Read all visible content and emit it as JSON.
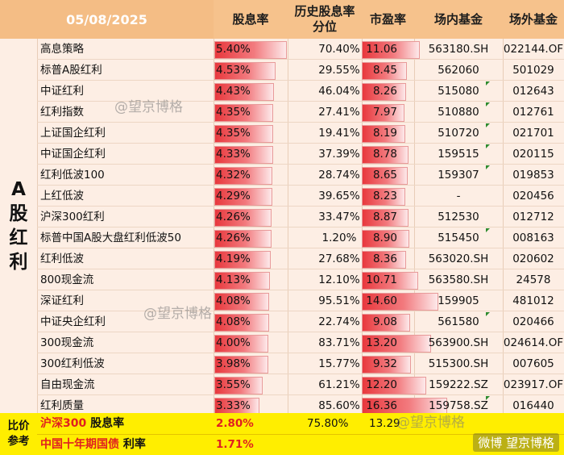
{
  "header": {
    "date": "05/08/2025",
    "col_yield": "股息率",
    "col_percentile": "历史股息率分位",
    "col_pe": "市盈率",
    "col_onmarket": "场内基金",
    "col_offmarket": "场外基金"
  },
  "side_label": [
    "A",
    "股",
    "红",
    "利"
  ],
  "rows": [
    {
      "name": "高息策略",
      "yield": "5.40%",
      "yield_value": 5.4,
      "percentile": "70.40%",
      "pe": "11.06",
      "pe_value": 11.06,
      "onmarket": "563180.SH",
      "offmarket": "022144.OF",
      "marker": false
    },
    {
      "name": "标普A股红利",
      "yield": "4.53%",
      "yield_value": 4.53,
      "percentile": "29.55%",
      "pe": "8.45",
      "pe_value": 8.45,
      "onmarket": "562060",
      "offmarket": "501029",
      "marker": false
    },
    {
      "name": "中证红利",
      "yield": "4.43%",
      "yield_value": 4.43,
      "percentile": "46.04%",
      "pe": "8.26",
      "pe_value": 8.26,
      "onmarket": "515080",
      "offmarket": "012643",
      "marker": true
    },
    {
      "name": "红利指数",
      "yield": "4.35%",
      "yield_value": 4.35,
      "percentile": "27.41%",
      "pe": "7.97",
      "pe_value": 7.97,
      "onmarket": "510880",
      "offmarket": "012761",
      "marker": true
    },
    {
      "name": "上证国企红利",
      "yield": "4.35%",
      "yield_value": 4.35,
      "percentile": "19.41%",
      "pe": "8.19",
      "pe_value": 8.19,
      "onmarket": "510720",
      "offmarket": "021701",
      "marker": true
    },
    {
      "name": "中证国企红利",
      "yield": "4.33%",
      "yield_value": 4.33,
      "percentile": "37.39%",
      "pe": "8.78",
      "pe_value": 8.78,
      "onmarket": "159515",
      "offmarket": "020115",
      "marker": true
    },
    {
      "name": "红利低波100",
      "yield": "4.32%",
      "yield_value": 4.32,
      "percentile": "28.74%",
      "pe": "8.65",
      "pe_value": 8.65,
      "onmarket": "159307",
      "offmarket": "019853",
      "marker": true
    },
    {
      "name": "上红低波",
      "yield": "4.29%",
      "yield_value": 4.29,
      "percentile": "39.65%",
      "pe": "8.23",
      "pe_value": 8.23,
      "onmarket": "-",
      "offmarket": "020456",
      "marker": false
    },
    {
      "name": "沪深300红利",
      "yield": "4.26%",
      "yield_value": 4.26,
      "percentile": "33.47%",
      "pe": "8.87",
      "pe_value": 8.87,
      "onmarket": "512530",
      "offmarket": "012712",
      "marker": false
    },
    {
      "name": "标普中国A股大盘红利低波50",
      "yield": "4.26%",
      "yield_value": 4.26,
      "percentile": "1.20%",
      "pe": "8.90",
      "pe_value": 8.9,
      "onmarket": "515450",
      "offmarket": "008163",
      "marker": true
    },
    {
      "name": "红利低波",
      "yield": "4.19%",
      "yield_value": 4.19,
      "percentile": "27.68%",
      "pe": "8.36",
      "pe_value": 8.36,
      "onmarket": "563020.SH",
      "offmarket": "020602",
      "marker": false
    },
    {
      "name": "800现金流",
      "yield": "4.13%",
      "yield_value": 4.13,
      "percentile": "12.10%",
      "pe": "10.71",
      "pe_value": 10.71,
      "onmarket": "563580.SH",
      "offmarket": "24578",
      "marker": false
    },
    {
      "name": "深证红利",
      "yield": "4.08%",
      "yield_value": 4.08,
      "percentile": "95.51%",
      "pe": "14.60",
      "pe_value": 14.6,
      "onmarket": "159905",
      "offmarket": "481012",
      "marker": false
    },
    {
      "name": "中证央企红利",
      "yield": "4.08%",
      "yield_value": 4.08,
      "percentile": "22.74%",
      "pe": "9.08",
      "pe_value": 9.08,
      "onmarket": "561580",
      "offmarket": "020466",
      "marker": true
    },
    {
      "name": "300现金流",
      "yield": "4.00%",
      "yield_value": 4.0,
      "percentile": "83.71%",
      "pe": "13.20",
      "pe_value": 13.2,
      "onmarket": "563900.SH",
      "offmarket": "024614.OF",
      "marker": false
    },
    {
      "name": "300红利低波",
      "yield": "3.98%",
      "yield_value": 3.98,
      "percentile": "15.77%",
      "pe": "9.32",
      "pe_value": 9.32,
      "onmarket": "515300.SH",
      "offmarket": "007605",
      "marker": false
    },
    {
      "name": "自由现金流",
      "yield": "3.55%",
      "yield_value": 3.55,
      "percentile": "61.21%",
      "pe": "12.20",
      "pe_value": 12.2,
      "onmarket": "159222.SZ",
      "offmarket": "023917.OF",
      "marker": false
    },
    {
      "name": "红利质量",
      "yield": "3.33%",
      "yield_value": 3.33,
      "percentile": "85.60%",
      "pe": "16.36",
      "pe_value": 16.36,
      "onmarket": "159758.SZ",
      "offmarket": "016440",
      "marker": true
    }
  ],
  "footer": {
    "side_label": [
      "比价",
      "参考"
    ],
    "row1": {
      "name_red": "沪深300",
      "name_black": "股息率",
      "yield": "2.80%",
      "percentile": "75.80%",
      "pe": "13.29"
    },
    "row2": {
      "name_red": "中国十年期国债",
      "name_black": "利率",
      "yield": "1.71%"
    }
  },
  "watermark": "@望京博格",
  "watermark_footer": "微博 望京博格",
  "colors": {
    "header": "#f6c28c",
    "body": "#fdeee4",
    "bar": "#e8383d",
    "footer": "#ffee00",
    "footer_text": "#e02020",
    "marker": "#2e8b2e"
  }
}
